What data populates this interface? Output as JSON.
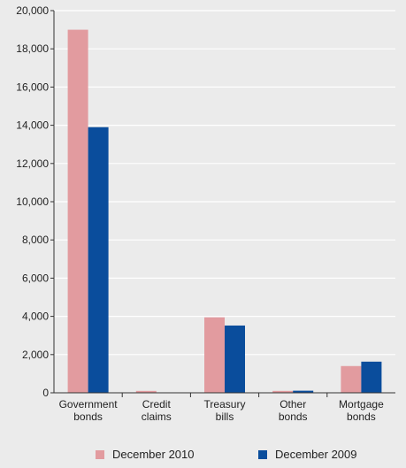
{
  "chart_data": {
    "type": "bar",
    "categories": [
      [
        "Government",
        "bonds"
      ],
      [
        "Credit",
        "claims"
      ],
      [
        "Treasury",
        "bills"
      ],
      [
        "Other",
        "bonds"
      ],
      [
        "Mortgage",
        "bonds"
      ]
    ],
    "series": [
      {
        "name": "December 2010",
        "color": "#e29b9f",
        "values": [
          19000,
          100,
          3950,
          100,
          1400
        ]
      },
      {
        "name": "December 2009",
        "color": "#0a4d9c",
        "values": [
          13900,
          0,
          3520,
          110,
          1630
        ]
      }
    ],
    "yticks": [
      0,
      2000,
      4000,
      6000,
      8000,
      10000,
      12000,
      14000,
      16000,
      18000,
      20000
    ],
    "ytick_labels": [
      "0",
      "2,000",
      "4,000",
      "6,000",
      "8,000",
      "10,000",
      "12,000",
      "14,000",
      "16,000",
      "18,000",
      "20,000"
    ],
    "ylim": [
      0,
      20000
    ],
    "grid": true,
    "legend_position": "bottom"
  }
}
